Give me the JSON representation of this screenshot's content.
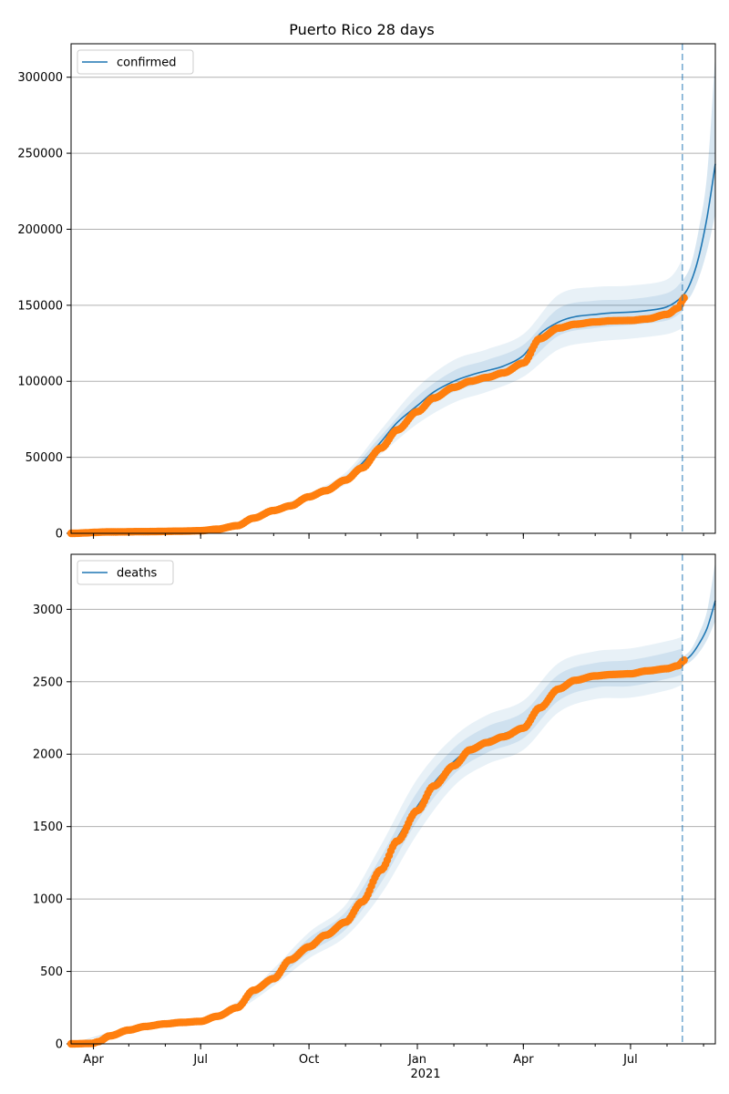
{
  "figure": {
    "title": "Puerto Rico 28 days"
  },
  "colors": {
    "model": "#1f77b4",
    "observed": "#ff7f0e",
    "band": "#1f77b4",
    "grid": "#b0b0b0",
    "cutoff": "#1f77b4"
  },
  "x_axis": {
    "ticks": [
      {
        "date": "2020-04-01",
        "label": "Apr"
      },
      {
        "date": "2020-07-01",
        "label": "Jul"
      },
      {
        "date": "2020-10-01",
        "label": "Oct"
      },
      {
        "date": "2021-01-01",
        "label": "Jan"
      },
      {
        "date": "2021-04-01",
        "label": "Apr"
      },
      {
        "date": "2021-07-01",
        "label": "Jul"
      }
    ],
    "year_label": "2021",
    "range": [
      "2020-03-13",
      "2021-09-11"
    ],
    "forecast_start": "2021-08-14"
  },
  "chart_data": [
    {
      "type": "line",
      "legend": "confirmed",
      "legend_position": "top-left",
      "grid": "y",
      "ylim": [
        0,
        322000
      ],
      "yticks": [
        0,
        50000,
        100000,
        150000,
        200000,
        250000,
        300000
      ],
      "model": [
        [
          "2020-03-13",
          0
        ],
        [
          "2020-05-01",
          900
        ],
        [
          "2020-07-01",
          1500
        ],
        [
          "2020-07-15",
          2500
        ],
        [
          "2020-08-01",
          5000
        ],
        [
          "2020-08-15",
          10000
        ],
        [
          "2020-09-01",
          15000
        ],
        [
          "2020-09-15",
          18500
        ],
        [
          "2020-10-01",
          24000
        ],
        [
          "2020-10-15",
          29000
        ],
        [
          "2020-11-01",
          36000
        ],
        [
          "2020-11-15",
          46000
        ],
        [
          "2020-12-01",
          60000
        ],
        [
          "2020-12-15",
          73000
        ],
        [
          "2021-01-01",
          84000
        ],
        [
          "2021-01-15",
          93000
        ],
        [
          "2021-02-01",
          100000
        ],
        [
          "2021-02-15",
          104000
        ],
        [
          "2021-03-01",
          107000
        ],
        [
          "2021-03-15",
          110000
        ],
        [
          "2021-04-01",
          117000
        ],
        [
          "2021-04-15",
          131000
        ],
        [
          "2021-05-01",
          139000
        ],
        [
          "2021-05-15",
          142500
        ],
        [
          "2021-06-01",
          144000
        ],
        [
          "2021-06-15",
          145000
        ],
        [
          "2021-07-01",
          145500
        ],
        [
          "2021-07-15",
          146500
        ],
        [
          "2021-08-01",
          149000
        ],
        [
          "2021-08-14",
          156000
        ],
        [
          "2021-08-21",
          165000
        ],
        [
          "2021-08-28",
          182000
        ],
        [
          "2021-09-04",
          208000
        ],
        [
          "2021-09-11",
          243000
        ]
      ],
      "band_inner": [
        [
          "2020-03-13",
          0,
          0
        ],
        [
          "2020-07-01",
          1400,
          1600
        ],
        [
          "2020-08-01",
          4700,
          5300
        ],
        [
          "2020-09-01",
          14200,
          15800
        ],
        [
          "2020-10-01",
          22800,
          25200
        ],
        [
          "2020-11-01",
          34000,
          38000
        ],
        [
          "2020-12-01",
          56000,
          64000
        ],
        [
          "2021-01-01",
          78000,
          90000
        ],
        [
          "2021-02-01",
          93000,
          107000
        ],
        [
          "2021-03-01",
          100000,
          114000
        ],
        [
          "2021-04-01",
          110000,
          124000
        ],
        [
          "2021-05-01",
          130000,
          148000
        ],
        [
          "2021-06-01",
          135000,
          153000
        ],
        [
          "2021-07-01",
          137000,
          154000
        ],
        [
          "2021-08-01",
          140000,
          158000
        ],
        [
          "2021-08-14",
          146000,
          166000
        ]
      ],
      "band_outer": [
        [
          "2020-03-13",
          0,
          0
        ],
        [
          "2020-07-01",
          1300,
          1700
        ],
        [
          "2020-08-01",
          4400,
          5600
        ],
        [
          "2020-09-01",
          13400,
          16600
        ],
        [
          "2020-10-01",
          21600,
          26400
        ],
        [
          "2020-11-01",
          32000,
          40000
        ],
        [
          "2020-12-01",
          52000,
          68000
        ],
        [
          "2021-01-01",
          72000,
          96000
        ],
        [
          "2021-02-01",
          86000,
          114000
        ],
        [
          "2021-03-01",
          93000,
          121000
        ],
        [
          "2021-04-01",
          103000,
          131000
        ],
        [
          "2021-05-01",
          121000,
          157000
        ],
        [
          "2021-06-01",
          126000,
          162000
        ],
        [
          "2021-07-01",
          128000,
          163000
        ],
        [
          "2021-08-01",
          131000,
          167000
        ],
        [
          "2021-08-14",
          135000,
          180000
        ]
      ],
      "band_forecast": [
        [
          "2021-08-14",
          150000,
          166000
        ],
        [
          "2021-08-21",
          156000,
          176000
        ],
        [
          "2021-08-28",
          168000,
          200000
        ],
        [
          "2021-09-04",
          186000,
          236000
        ],
        [
          "2021-09-11",
          210000,
          315000
        ]
      ],
      "observed": [
        [
          "2020-03-13",
          0
        ],
        [
          "2020-04-15",
          900
        ],
        [
          "2020-05-15",
          1100
        ],
        [
          "2020-06-15",
          1400
        ],
        [
          "2020-07-01",
          1700
        ],
        [
          "2020-07-15",
          2700
        ],
        [
          "2020-08-01",
          5000
        ],
        [
          "2020-08-15",
          10000
        ],
        [
          "2020-09-01",
          15000
        ],
        [
          "2020-09-15",
          18000
        ],
        [
          "2020-10-01",
          24000
        ],
        [
          "2020-10-15",
          28000
        ],
        [
          "2020-11-01",
          35000
        ],
        [
          "2020-11-15",
          43000
        ],
        [
          "2020-12-01",
          56000
        ],
        [
          "2020-12-15",
          68000
        ],
        [
          "2021-01-01",
          80000
        ],
        [
          "2021-01-15",
          89000
        ],
        [
          "2021-02-01",
          96000
        ],
        [
          "2021-02-15",
          100000
        ],
        [
          "2021-03-01",
          102500
        ],
        [
          "2021-03-15",
          105500
        ],
        [
          "2021-04-01",
          112000
        ],
        [
          "2021-04-15",
          128000
        ],
        [
          "2021-05-01",
          135000
        ],
        [
          "2021-05-15",
          137500
        ],
        [
          "2021-06-01",
          139000
        ],
        [
          "2021-06-15",
          139800
        ],
        [
          "2021-07-01",
          140000
        ],
        [
          "2021-07-15",
          141000
        ],
        [
          "2021-08-01",
          144000
        ],
        [
          "2021-08-10",
          148000
        ],
        [
          "2021-08-16",
          155000
        ]
      ]
    },
    {
      "type": "line",
      "legend": "deaths",
      "legend_position": "top-left",
      "grid": "y",
      "ylim": [
        0,
        3380
      ],
      "yticks": [
        0,
        500,
        1000,
        1500,
        2000,
        2500,
        3000
      ],
      "model": [
        [
          "2020-03-13",
          0
        ],
        [
          "2020-04-01",
          10
        ],
        [
          "2020-04-15",
          60
        ],
        [
          "2020-05-01",
          100
        ],
        [
          "2020-05-15",
          125
        ],
        [
          "2020-06-01",
          140
        ],
        [
          "2020-06-15",
          150
        ],
        [
          "2020-07-01",
          155
        ],
        [
          "2020-07-15",
          190
        ],
        [
          "2020-08-01",
          260
        ],
        [
          "2020-08-15",
          380
        ],
        [
          "2020-09-01",
          460
        ],
        [
          "2020-09-15",
          590
        ],
        [
          "2020-10-01",
          680
        ],
        [
          "2020-10-15",
          760
        ],
        [
          "2020-11-01",
          850
        ],
        [
          "2020-11-15",
          980
        ],
        [
          "2020-12-01",
          1200
        ],
        [
          "2020-12-15",
          1420
        ],
        [
          "2021-01-01",
          1640
        ],
        [
          "2021-01-15",
          1800
        ],
        [
          "2021-02-01",
          1950
        ],
        [
          "2021-02-15",
          2040
        ],
        [
          "2021-03-01",
          2100
        ],
        [
          "2021-03-15",
          2140
        ],
        [
          "2021-04-01",
          2200
        ],
        [
          "2021-04-15",
          2330
        ],
        [
          "2021-05-01",
          2460
        ],
        [
          "2021-05-15",
          2520
        ],
        [
          "2021-06-01",
          2545
        ],
        [
          "2021-06-15",
          2555
        ],
        [
          "2021-07-01",
          2560
        ],
        [
          "2021-07-15",
          2580
        ],
        [
          "2021-08-01",
          2610
        ],
        [
          "2021-08-14",
          2640
        ],
        [
          "2021-08-21",
          2680
        ],
        [
          "2021-08-28",
          2760
        ],
        [
          "2021-09-04",
          2870
        ],
        [
          "2021-09-11",
          3060
        ]
      ],
      "band_inner": [
        [
          "2020-03-13",
          0,
          0
        ],
        [
          "2020-05-01",
          95,
          105
        ],
        [
          "2020-07-01",
          148,
          162
        ],
        [
          "2020-08-01",
          245,
          275
        ],
        [
          "2020-09-01",
          430,
          490
        ],
        [
          "2020-10-01",
          630,
          730
        ],
        [
          "2020-11-01",
          790,
          910
        ],
        [
          "2020-12-01",
          1110,
          1290
        ],
        [
          "2021-01-01",
          1540,
          1740
        ],
        [
          "2021-02-01",
          1860,
          2040
        ],
        [
          "2021-03-01",
          2010,
          2190
        ],
        [
          "2021-04-01",
          2110,
          2290
        ],
        [
          "2021-05-01",
          2370,
          2550
        ],
        [
          "2021-06-01",
          2460,
          2630
        ],
        [
          "2021-07-01",
          2470,
          2650
        ],
        [
          "2021-08-01",
          2520,
          2700
        ],
        [
          "2021-08-14",
          2550,
          2730
        ]
      ],
      "band_outer": [
        [
          "2020-03-13",
          0,
          0
        ],
        [
          "2020-05-01",
          90,
          110
        ],
        [
          "2020-07-01",
          140,
          170
        ],
        [
          "2020-08-01",
          230,
          290
        ],
        [
          "2020-09-01",
          400,
          520
        ],
        [
          "2020-10-01",
          590,
          770
        ],
        [
          "2020-11-01",
          740,
          960
        ],
        [
          "2020-12-01",
          1030,
          1370
        ],
        [
          "2021-01-01",
          1450,
          1830
        ],
        [
          "2021-02-01",
          1780,
          2120
        ],
        [
          "2021-03-01",
          1930,
          2270
        ],
        [
          "2021-04-01",
          2030,
          2370
        ],
        [
          "2021-05-01",
          2290,
          2630
        ],
        [
          "2021-06-01",
          2380,
          2710
        ],
        [
          "2021-07-01",
          2390,
          2730
        ],
        [
          "2021-08-01",
          2440,
          2780
        ],
        [
          "2021-08-14",
          2480,
          2810
        ]
      ],
      "band_forecast": [
        [
          "2021-08-14",
          2610,
          2670
        ],
        [
          "2021-08-21",
          2640,
          2720
        ],
        [
          "2021-08-28",
          2700,
          2830
        ],
        [
          "2021-09-04",
          2790,
          2990
        ],
        [
          "2021-09-11",
          2920,
          3330
        ]
      ],
      "observed": [
        [
          "2020-03-13",
          0
        ],
        [
          "2020-03-31",
          3
        ],
        [
          "2020-04-05",
          15
        ],
        [
          "2020-04-15",
          55
        ],
        [
          "2020-05-01",
          95
        ],
        [
          "2020-05-15",
          120
        ],
        [
          "2020-06-01",
          138
        ],
        [
          "2020-06-15",
          148
        ],
        [
          "2020-07-01",
          155
        ],
        [
          "2020-07-15",
          190
        ],
        [
          "2020-08-01",
          250
        ],
        [
          "2020-08-15",
          370
        ],
        [
          "2020-09-01",
          450
        ],
        [
          "2020-09-15",
          580
        ],
        [
          "2020-10-01",
          670
        ],
        [
          "2020-10-15",
          750
        ],
        [
          "2020-11-01",
          840
        ],
        [
          "2020-11-15",
          980
        ],
        [
          "2020-12-01",
          1200
        ],
        [
          "2020-12-15",
          1400
        ],
        [
          "2021-01-01",
          1610
        ],
        [
          "2021-01-15",
          1780
        ],
        [
          "2021-02-01",
          1920
        ],
        [
          "2021-02-15",
          2030
        ],
        [
          "2021-03-01",
          2080
        ],
        [
          "2021-03-15",
          2120
        ],
        [
          "2021-04-01",
          2180
        ],
        [
          "2021-04-15",
          2320
        ],
        [
          "2021-05-01",
          2450
        ],
        [
          "2021-05-15",
          2510
        ],
        [
          "2021-06-01",
          2540
        ],
        [
          "2021-06-15",
          2550
        ],
        [
          "2021-07-01",
          2555
        ],
        [
          "2021-07-15",
          2575
        ],
        [
          "2021-08-01",
          2590
        ],
        [
          "2021-08-10",
          2610
        ],
        [
          "2021-08-16",
          2650
        ]
      ]
    }
  ]
}
